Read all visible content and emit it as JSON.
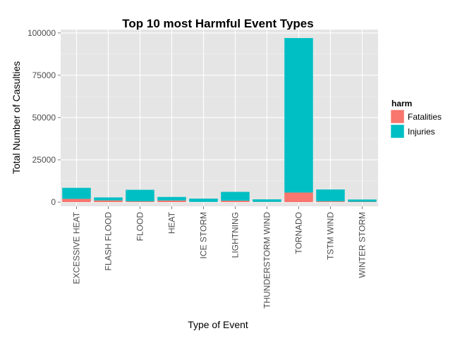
{
  "chart_data": {
    "type": "bar",
    "stacked": true,
    "title": "Top 10 most Harmful Event Types",
    "xlabel": "Type of Event",
    "ylabel": "Total Number of Casulties",
    "ylim": [
      -2500,
      102000
    ],
    "yticks": [
      0,
      25000,
      50000,
      75000,
      100000
    ],
    "grid": true,
    "legend_position": "right",
    "legend_title": "harm",
    "categories": [
      "EXCESSIVE HEAT",
      "FLASH FLOOD",
      "FLOOD",
      "HEAT",
      "ICE STORM",
      "LIGHTNING",
      "THUNDERSTORM WIND",
      "TORNADO",
      "TSTM WIND",
      "WINTER STORM"
    ],
    "series": [
      {
        "name": "Fatalities",
        "color": "#f8766d",
        "values": [
          1903,
          978,
          470,
          937,
          89,
          816,
          133,
          5633,
          504,
          206
        ]
      },
      {
        "name": "Injuries",
        "color": "#00bfc4",
        "values": [
          6525,
          1777,
          6789,
          2100,
          1975,
          5230,
          1488,
          91346,
          6957,
          1321
        ]
      }
    ]
  }
}
